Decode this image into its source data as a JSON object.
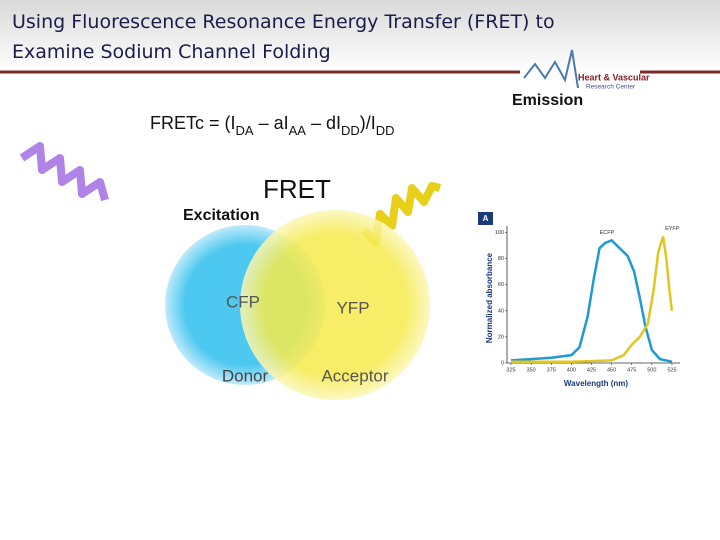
{
  "header": {
    "title_lines": [
      "Using Fluorescence Resonance Energy Transfer (FRET) to",
      "Examine Sodium Channel Folding"
    ],
    "logo": [
      "Heart & Vascular",
      "Research Center"
    ]
  },
  "diagram": {
    "formula": [
      "FRETc = (I",
      "DA",
      " – aI",
      "AA",
      " – dI",
      "DD",
      ")/I",
      "DD"
    ],
    "emission": "Emission",
    "fret": "FRET",
    "excitation": "Excitation",
    "donor_fluor": "CFP",
    "acceptor_fluor": "YFP",
    "donor": "Donor",
    "acceptor": "Acceptor"
  },
  "chart_data": {
    "type": "line",
    "panel": "A",
    "ylabel": "Normalized absorbance",
    "xlabel": "Wavelength (nm)",
    "xlim": [
      320,
      535
    ],
    "ylim": [
      0,
      105
    ],
    "xticks": [
      325,
      350,
      375,
      400,
      425,
      450,
      475,
      500,
      525
    ],
    "yticks": [
      0,
      20,
      40,
      60,
      80,
      100
    ],
    "series": [
      {
        "name": "ECFP",
        "color": "#1e9ad6",
        "x": [
          325,
          350,
          375,
          400,
          410,
          420,
          428,
          435,
          442,
          450,
          460,
          470,
          478,
          485,
          492,
          500,
          510,
          525
        ],
        "values": [
          2,
          3,
          4,
          6,
          12,
          35,
          65,
          88,
          92,
          94,
          88,
          82,
          70,
          50,
          28,
          10,
          3,
          1
        ]
      },
      {
        "name": "EYFP",
        "color": "#e2c620",
        "x": [
          325,
          400,
          450,
          465,
          475,
          485,
          495,
          502,
          508,
          514,
          518,
          522,
          525
        ],
        "values": [
          1,
          1,
          2,
          6,
          14,
          20,
          30,
          55,
          85,
          97,
          80,
          55,
          40
        ]
      }
    ]
  }
}
